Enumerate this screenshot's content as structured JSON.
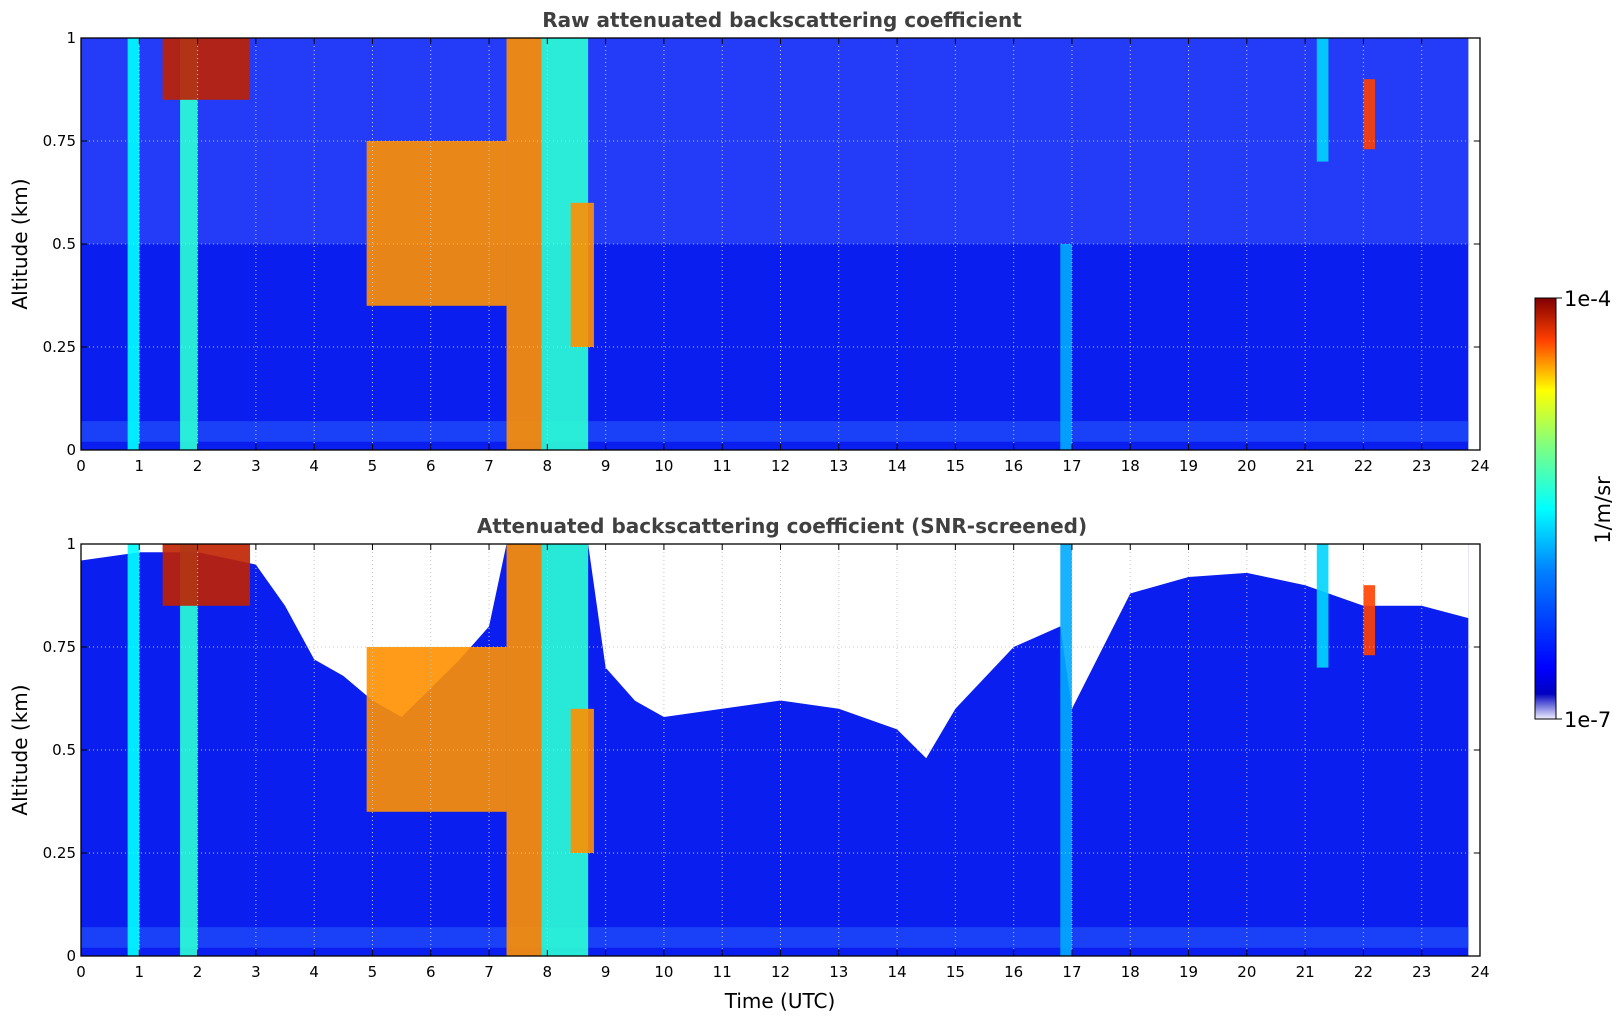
{
  "chart_data": [
    {
      "type": "heatmap",
      "title": "Raw attenuated backscattering coefficient",
      "xlabel": "",
      "ylabel": "Altitude (km)",
      "xlim": [
        0,
        24
      ],
      "ylim": [
        0,
        1
      ],
      "x_ticks": [
        "0",
        "1",
        "2",
        "3",
        "4",
        "5",
        "6",
        "7",
        "8",
        "9",
        "10",
        "11",
        "12",
        "13",
        "14",
        "15",
        "16",
        "17",
        "18",
        "19",
        "20",
        "21",
        "22",
        "23",
        "24"
      ],
      "y_ticks": [
        "0",
        "0.25",
        "0.5",
        "0.75",
        "1"
      ],
      "grid": true,
      "colormap": "jet",
      "log_scale": true,
      "data_end_x": 23.8,
      "features": [
        {
          "x": [
            0.8,
            1.0
          ],
          "y": [
            0,
            1
          ],
          "level": 0.5
        },
        {
          "x": [
            1.7,
            2.0
          ],
          "y": [
            0,
            1
          ],
          "level": 0.55
        },
        {
          "x": [
            1.4,
            2.9
          ],
          "y": [
            0.85,
            1
          ],
          "level": 0.95
        },
        {
          "x": [
            4.9,
            7.3
          ],
          "y": [
            0.35,
            0.75
          ],
          "level": 0.85
        },
        {
          "x": [
            7.3,
            7.9
          ],
          "y": [
            0,
            1
          ],
          "level": 0.85
        },
        {
          "x": [
            7.9,
            8.7
          ],
          "y": [
            0,
            1
          ],
          "level": 0.55
        },
        {
          "x": [
            8.4,
            8.8
          ],
          "y": [
            0.25,
            0.6
          ],
          "level": 0.85
        },
        {
          "x": [
            16.8,
            17.0
          ],
          "y": [
            0,
            0.5
          ],
          "level": 0.4
        },
        {
          "x": [
            21.2,
            21.4
          ],
          "y": [
            0.7,
            1
          ],
          "level": 0.45
        },
        {
          "x": [
            22.0,
            22.2
          ],
          "y": [
            0.73,
            0.9
          ],
          "level": 0.9
        }
      ]
    },
    {
      "type": "heatmap",
      "title": "Attenuated backscattering coefficient (SNR-screened)",
      "xlabel": "Time (UTC)",
      "ylabel": "Altitude (km)",
      "xlim": [
        0,
        24
      ],
      "ylim": [
        0,
        1
      ],
      "x_ticks": [
        "0",
        "1",
        "2",
        "3",
        "4",
        "5",
        "6",
        "7",
        "8",
        "9",
        "10",
        "11",
        "12",
        "13",
        "14",
        "15",
        "16",
        "17",
        "18",
        "19",
        "20",
        "21",
        "22",
        "23",
        "24"
      ],
      "y_ticks": [
        "0",
        "0.25",
        "0.5",
        "0.75",
        "1"
      ],
      "grid": true,
      "colormap": "jet",
      "log_scale": true,
      "data_end_x": 23.8,
      "screened_top_profile": {
        "x": [
          0,
          1,
          2,
          3,
          3.5,
          4,
          4.5,
          5,
          5.5,
          6,
          6.5,
          7,
          7.3,
          8.7,
          9,
          9.5,
          10,
          11,
          12,
          13,
          14,
          14.5,
          15,
          16,
          16.8,
          17,
          18,
          19,
          20,
          21,
          22,
          23,
          23.8
        ],
        "y": [
          0.96,
          0.98,
          0.98,
          0.95,
          0.85,
          0.72,
          0.68,
          0.62,
          0.58,
          0.65,
          0.72,
          0.8,
          1,
          1,
          0.7,
          0.62,
          0.58,
          0.6,
          0.62,
          0.6,
          0.55,
          0.48,
          0.6,
          0.75,
          0.8,
          0.6,
          0.88,
          0.92,
          0.93,
          0.9,
          0.85,
          0.85,
          0.82
        ]
      },
      "colorbar": {
        "label": "1/m/sr",
        "max_label": "1e-4",
        "min_label": "1e-7"
      }
    }
  ]
}
